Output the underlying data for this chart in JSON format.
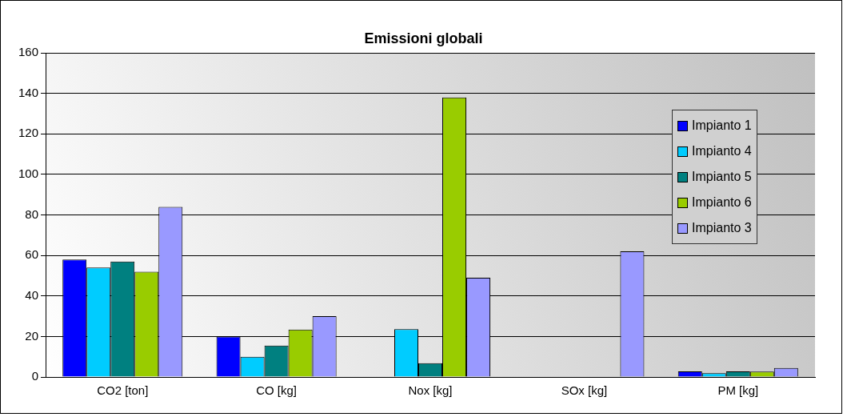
{
  "chart_data": {
    "type": "bar",
    "title": "Emissioni globali",
    "categories": [
      "CO2 [ton]",
      "CO [kg]",
      "Nox [kg]",
      "SOx [kg]",
      "PM [kg]"
    ],
    "series": [
      {
        "name": "Impianto 1",
        "color": "#0000ff",
        "values": [
          58,
          20,
          0,
          0,
          2.8
        ]
      },
      {
        "name": "Impianto 4",
        "color": "#00ccff",
        "values": [
          54,
          10,
          23.6,
          0,
          1.9
        ]
      },
      {
        "name": "Impianto 5",
        "color": "#008080",
        "values": [
          57,
          15.5,
          6.8,
          0,
          2.8
        ]
      },
      {
        "name": "Impianto 6",
        "color": "#99cc00",
        "values": [
          52,
          23.4,
          138,
          0,
          2.7
        ]
      },
      {
        "name": "Impianto 3",
        "color": "#9999ff",
        "values": [
          84,
          30,
          49,
          62,
          4.4
        ]
      }
    ],
    "ylim": [
      0,
      160
    ],
    "yticks": [
      0,
      20,
      40,
      60,
      80,
      100,
      120,
      140,
      160
    ],
    "grid": "y",
    "legend": "top right"
  }
}
